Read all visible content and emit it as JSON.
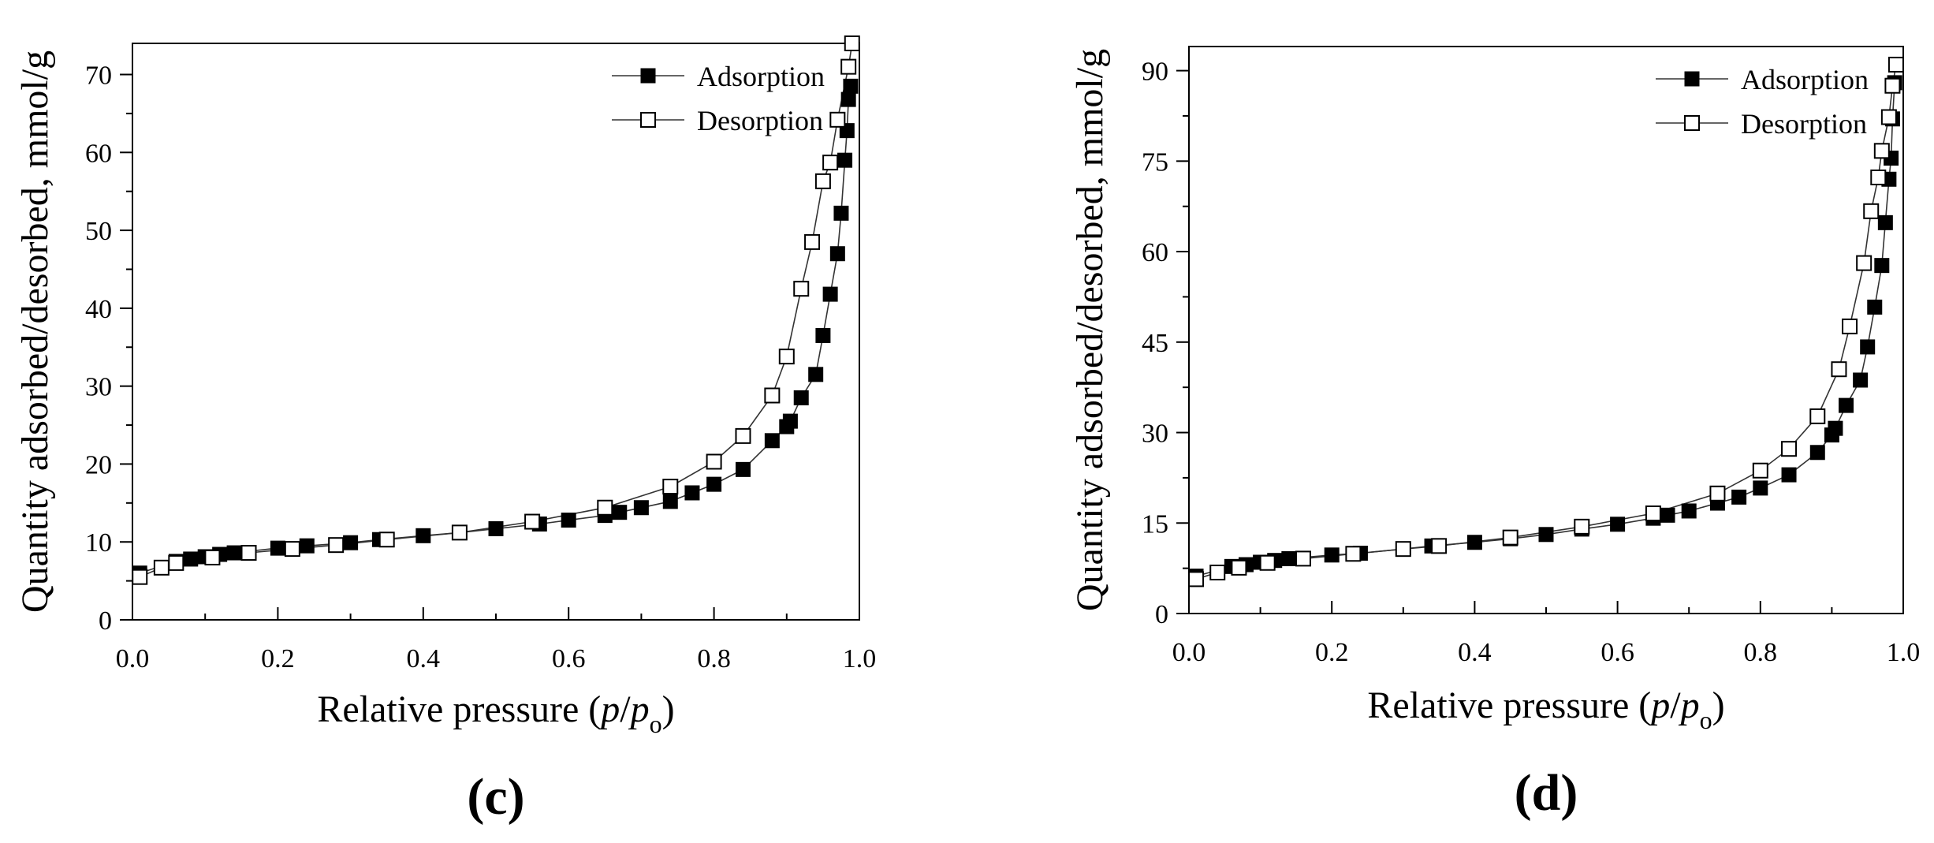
{
  "chart_data": [
    {
      "type": "scatter",
      "panel_label": "(c)",
      "ylabel": "Quantity adsorbed/desorbed, mmol/g",
      "xlabel": {
        "main": "Relative pressure (",
        "p1": "p",
        "slash": "/",
        "p2": "p",
        "sub": "o",
        "close": ")"
      },
      "xlim": [
        0,
        1.0
      ],
      "ylim": [
        0,
        74
      ],
      "xticks": [
        0.0,
        0.2,
        0.4,
        0.6,
        0.8,
        1.0
      ],
      "xtick_labels": [
        "0.0",
        "0.2",
        "0.4",
        "0.6",
        "0.8",
        "1.0"
      ],
      "yticks": [
        0,
        10,
        20,
        30,
        40,
        50,
        60,
        70
      ],
      "ytick_labels": [
        "0",
        "10",
        "20",
        "30",
        "40",
        "50",
        "60",
        "70"
      ],
      "legend_position": "top-right",
      "series": [
        {
          "name": "Adsorption",
          "marker": "filled-square",
          "x": [
            0.01,
            0.06,
            0.08,
            0.1,
            0.12,
            0.14,
            0.2,
            0.24,
            0.3,
            0.34,
            0.4,
            0.45,
            0.5,
            0.56,
            0.6,
            0.65,
            0.67,
            0.7,
            0.74,
            0.77,
            0.8,
            0.84,
            0.88,
            0.9,
            0.905,
            0.92,
            0.94,
            0.95,
            0.96,
            0.97,
            0.975,
            0.98,
            0.983,
            0.985,
            0.988
          ],
          "y": [
            6.0,
            7.5,
            7.8,
            8.1,
            8.4,
            8.6,
            9.2,
            9.5,
            9.9,
            10.3,
            10.8,
            11.2,
            11.7,
            12.3,
            12.8,
            13.4,
            13.8,
            14.4,
            15.2,
            16.3,
            17.4,
            19.3,
            23.0,
            24.8,
            25.5,
            28.5,
            31.5,
            36.5,
            41.8,
            47.0,
            52.2,
            59.0,
            62.8,
            66.8,
            68.5
          ]
        },
        {
          "name": "Desorption",
          "marker": "open-square",
          "x": [
            0.01,
            0.04,
            0.06,
            0.11,
            0.16,
            0.22,
            0.28,
            0.35,
            0.45,
            0.55,
            0.65,
            0.74,
            0.8,
            0.84,
            0.88,
            0.9,
            0.92,
            0.935,
            0.95,
            0.96,
            0.97,
            0.985,
            0.99
          ],
          "y": [
            5.5,
            6.7,
            7.3,
            8.0,
            8.6,
            9.1,
            9.6,
            10.3,
            11.2,
            12.6,
            14.4,
            17.1,
            20.3,
            23.6,
            28.8,
            33.8,
            42.5,
            48.5,
            56.3,
            58.7,
            64.2,
            71.0,
            74.0
          ]
        }
      ]
    },
    {
      "type": "scatter",
      "panel_label": "(d)",
      "ylabel": "Quantity adsorbed/desorbed, mmol/g",
      "xlabel": {
        "main": "Relative pressure (",
        "p1": "p",
        "slash": "/",
        "p2": "p",
        "sub": "o",
        "close": ")"
      },
      "xlim": [
        0,
        1.0
      ],
      "ylim": [
        0,
        94
      ],
      "xticks": [
        0.0,
        0.2,
        0.4,
        0.6,
        0.8,
        1.0
      ],
      "xtick_labels": [
        "0.0",
        "0.2",
        "0.4",
        "0.6",
        "0.8",
        "1.0"
      ],
      "yticks": [
        0,
        15,
        30,
        45,
        60,
        75,
        90
      ],
      "ytick_labels": [
        "0",
        "15",
        "30",
        "45",
        "60",
        "75",
        "90"
      ],
      "legend_position": "top-right",
      "series": [
        {
          "name": "Adsorption",
          "marker": "filled-square",
          "x": [
            0.01,
            0.06,
            0.08,
            0.1,
            0.12,
            0.14,
            0.2,
            0.24,
            0.3,
            0.34,
            0.4,
            0.45,
            0.5,
            0.55,
            0.6,
            0.65,
            0.67,
            0.7,
            0.74,
            0.77,
            0.8,
            0.84,
            0.88,
            0.9,
            0.905,
            0.92,
            0.94,
            0.95,
            0.96,
            0.97,
            0.975,
            0.98,
            0.983,
            0.985,
            0.988
          ],
          "y": [
            6.2,
            7.8,
            8.1,
            8.5,
            8.8,
            9.1,
            9.7,
            10.0,
            10.7,
            11.2,
            11.8,
            12.4,
            13.1,
            14.0,
            14.8,
            15.8,
            16.3,
            17.0,
            18.3,
            19.3,
            20.8,
            23.0,
            26.7,
            29.6,
            30.7,
            34.5,
            38.7,
            44.2,
            50.8,
            57.7,
            64.8,
            72.0,
            75.5,
            82.0,
            88.0
          ]
        },
        {
          "name": "Desorption",
          "marker": "open-square",
          "x": [
            0.01,
            0.04,
            0.07,
            0.11,
            0.16,
            0.23,
            0.3,
            0.35,
            0.45,
            0.55,
            0.65,
            0.74,
            0.8,
            0.84,
            0.88,
            0.91,
            0.925,
            0.945,
            0.955,
            0.965,
            0.97,
            0.98,
            0.985,
            0.99
          ],
          "y": [
            5.7,
            6.8,
            7.6,
            8.4,
            9.1,
            9.9,
            10.7,
            11.2,
            12.6,
            14.4,
            16.6,
            19.9,
            23.7,
            27.3,
            32.7,
            40.5,
            47.6,
            58.1,
            66.7,
            72.3,
            76.7,
            82.3,
            87.5,
            91.0
          ]
        }
      ]
    }
  ]
}
